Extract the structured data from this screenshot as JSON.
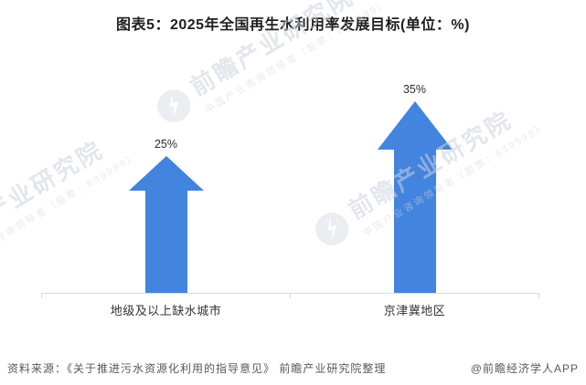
{
  "page": {
    "title": "图表5：2025年全国再生水利用率发展目标(单位：%)",
    "source_note": "资料来源：《关于推进污水资源化利用的指导意见》 前瞻产业研究院整理",
    "credit": "@前瞻经济学人APP"
  },
  "watermark": {
    "main": "前瞻产业研究院",
    "sub": "中国产业咨询领导者（股票：839599）",
    "logo": "qianzhan-bird-logo"
  },
  "chart_data": {
    "type": "bar",
    "variant": "pictorial-upward-arrows",
    "title": "2025年全国再生水利用率发展目标",
    "unit": "%",
    "categories": [
      "地级及以上缺水城市",
      "京津冀地区"
    ],
    "values": [
      25,
      35
    ],
    "value_labels": [
      "25%",
      "35%"
    ],
    "xlabel": "",
    "ylabel": "",
    "ylim": [
      0,
      36
    ],
    "grid": false,
    "legend": false,
    "colors": {
      "arrow": "#4284DE",
      "axis": "#D9D9D9",
      "value_label": "#2B2B2B",
      "category_label": "#333333",
      "title": "#1F1F1F",
      "source": "#595959"
    }
  }
}
